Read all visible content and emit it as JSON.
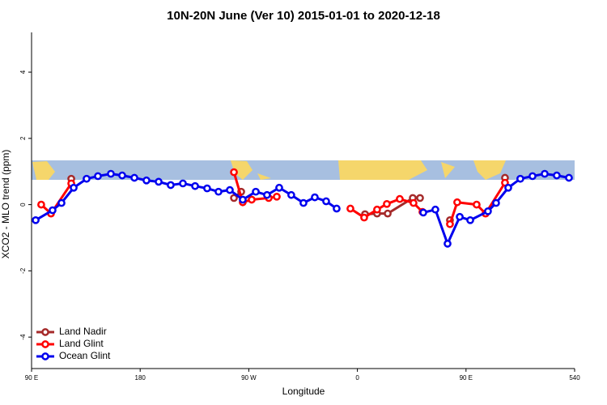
{
  "chart_data": {
    "type": "line",
    "title": "10N-20N June (Ver 10)   2015-01-01 to 2020-12-18",
    "x_label": "Longitude",
    "y_label": "XCO2 - MLO trend (ppm)",
    "xlim": [
      90,
      540
    ],
    "xticks": [
      {
        "value": 90,
        "label": "90 E"
      },
      180,
      {
        "value": 270,
        "label": "90 W"
      },
      {
        "value": 360,
        "label": "0"
      },
      {
        "value": 450,
        "label": "90 E"
      },
      540
    ],
    "ylim": [
      -4.95,
      5.2
    ],
    "yticks": [
      -4,
      -2,
      0,
      2,
      4
    ],
    "legend": "bottom-left",
    "series": [
      {
        "name": "Land Nadir",
        "color": "#a52a2a",
        "x": [
          122.9,
          null,
          257.7,
          263.7,
          null,
          366.3,
          376.3,
          385.1,
          405.9,
          411.9,
          null,
          436.7,
          null,
          482.3
        ],
        "values": [
          0.78,
          null,
          0.2,
          0.39,
          null,
          -0.29,
          -0.27,
          -0.27,
          0.2,
          0.2,
          null,
          -0.47,
          null,
          0.81
        ]
      },
      {
        "name": "Land Glint",
        "color": "#ff0000",
        "x": [
          98.0,
          106.1,
          122.9,
          null,
          257.7,
          265.0,
          272.4,
          286.5,
          293.2,
          null,
          354.2,
          365.6,
          376.3,
          384.4,
          395.1,
          406.5,
          413.9,
          null,
          436.7,
          442.7,
          458.8,
          466.2,
          482.3
        ],
        "values": [
          0.0,
          -0.27,
          0.64,
          null,
          0.98,
          0.07,
          0.15,
          0.2,
          0.24,
          null,
          -0.12,
          -0.39,
          -0.15,
          0.02,
          0.17,
          0.05,
          -0.22,
          null,
          -0.59,
          0.07,
          0.0,
          -0.27,
          0.66
        ]
      },
      {
        "name": "Ocean Glint",
        "color": "#0000ee",
        "x": [
          93.4,
          107.4,
          114.8,
          124.9,
          135.6,
          145.0,
          155.7,
          165.1,
          175.2,
          185.2,
          195.3,
          205.3,
          215.4,
          225.5,
          235.5,
          244.9,
          254.3,
          265.0,
          275.8,
          285.1,
          295.2,
          305.2,
          315.3,
          324.7,
          334.1,
          342.8,
          null,
          414.6,
          424.6,
          434.7,
          444.8,
          453.5,
          468.2,
          474.9,
          485.0,
          495.0,
          505.1,
          515.2,
          525.2,
          535.3
        ],
        "values": [
          -0.47,
          -0.17,
          0.05,
          0.51,
          0.78,
          0.86,
          0.93,
          0.88,
          0.81,
          0.73,
          0.69,
          0.59,
          0.64,
          0.56,
          0.49,
          0.39,
          0.44,
          0.15,
          0.39,
          0.29,
          0.51,
          0.29,
          0.05,
          0.22,
          0.1,
          -0.12,
          null,
          -0.24,
          -0.15,
          -1.18,
          -0.37,
          -0.47,
          -0.2,
          0.05,
          0.51,
          0.78,
          0.86,
          0.93,
          0.88,
          0.81
        ]
      }
    ]
  }
}
